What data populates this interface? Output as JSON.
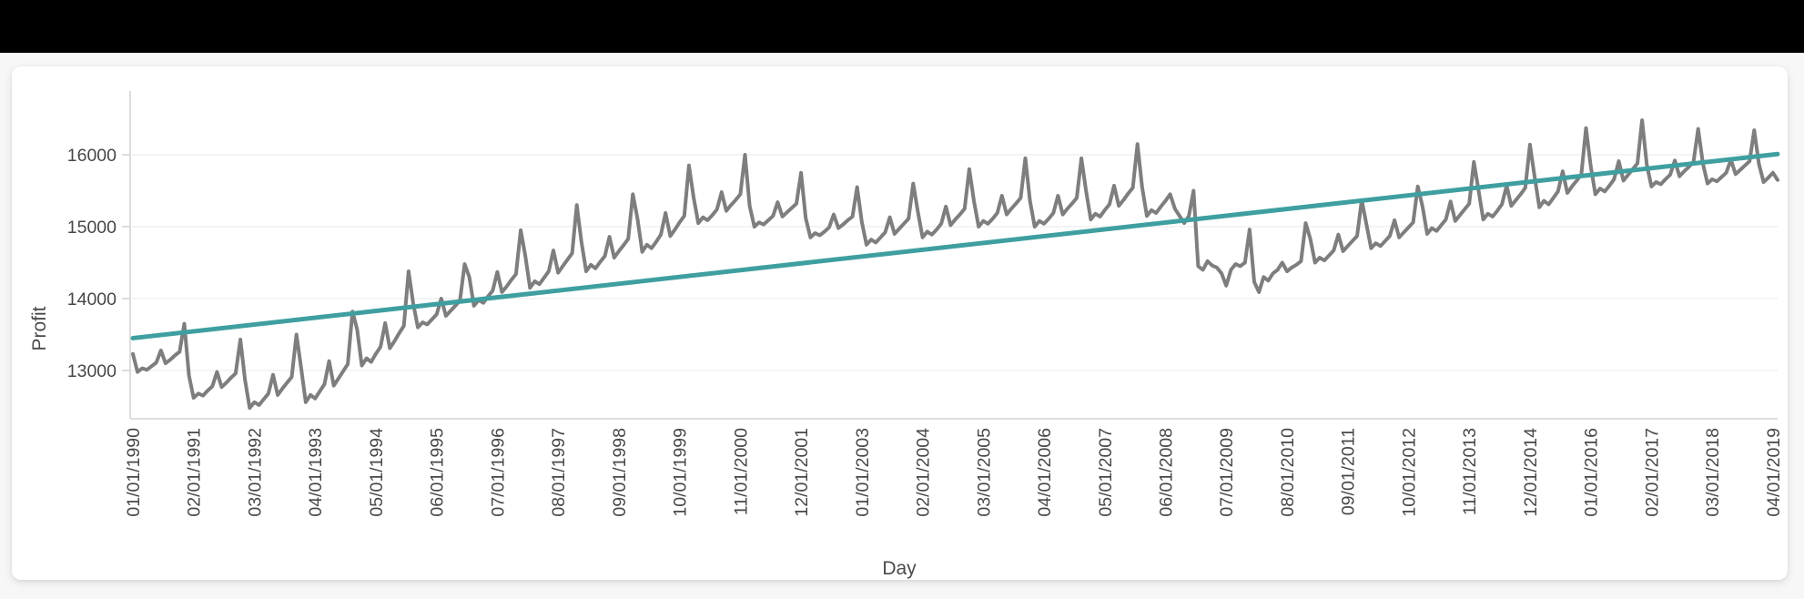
{
  "page": {
    "top_bar_color": "#000000",
    "background_color": "#f7f7f8",
    "card_color": "#ffffff"
  },
  "chart_data": {
    "type": "line",
    "title": "",
    "xlabel": "Day",
    "ylabel": "Profit",
    "grid": "horizontal",
    "legend": "none",
    "y_ticks": [
      13000,
      14000,
      15000,
      16000
    ],
    "ylim": [
      12330,
      16890
    ],
    "x_tick_every": 13,
    "x_tick_labels": [
      "01/01/1990",
      "02/01/1991",
      "03/01/1992",
      "04/01/1993",
      "05/01/1994",
      "06/01/1995",
      "07/01/1996",
      "08/01/1997",
      "09/01/1998",
      "10/01/1999",
      "11/01/2000",
      "12/01/2001",
      "01/01/2003",
      "02/01/2004",
      "03/01/2005",
      "04/01/2006",
      "05/01/2007",
      "06/01/2008",
      "07/01/2009",
      "08/01/2010",
      "09/01/2011",
      "10/01/2012",
      "11/01/2013",
      "12/01/2014",
      "01/01/2016",
      "02/01/2017",
      "03/01/2018",
      "04/01/2019"
    ],
    "series": [
      {
        "name": "Profit",
        "color": "#7e7e7e",
        "stroke_width": 4,
        "values": [
          13230,
          12980,
          13030,
          13010,
          13060,
          13110,
          13280,
          13100,
          13150,
          13210,
          13260,
          13650,
          12930,
          12620,
          12680,
          12650,
          12720,
          12780,
          12980,
          12770,
          12830,
          12900,
          12960,
          13430,
          12870,
          12480,
          12560,
          12520,
          12600,
          12680,
          12940,
          12660,
          12750,
          12830,
          12910,
          13500,
          13040,
          12560,
          12660,
          12610,
          12710,
          12810,
          13130,
          12790,
          12890,
          12990,
          13090,
          13820,
          13570,
          13070,
          13170,
          13120,
          13230,
          13330,
          13660,
          13310,
          13410,
          13520,
          13620,
          14380,
          13930,
          13600,
          13670,
          13640,
          13710,
          13780,
          14000,
          13760,
          13830,
          13900,
          13970,
          14480,
          14300,
          13900,
          13980,
          13940,
          14030,
          14110,
          14370,
          14090,
          14170,
          14260,
          14340,
          14950,
          14590,
          14150,
          14240,
          14200,
          14290,
          14380,
          14670,
          14360,
          14450,
          14540,
          14630,
          15300,
          14790,
          14380,
          14470,
          14420,
          14510,
          14590,
          14860,
          14570,
          14660,
          14740,
          14830,
          15450,
          15110,
          14650,
          14750,
          14700,
          14790,
          14890,
          15190,
          14870,
          14960,
          15060,
          15150,
          15850,
          15410,
          15050,
          15130,
          15090,
          15160,
          15240,
          15480,
          15220,
          15300,
          15370,
          15450,
          16000,
          15290,
          15000,
          15060,
          15030,
          15090,
          15150,
          15340,
          15140,
          15200,
          15260,
          15320,
          15750,
          15120,
          14850,
          14910,
          14880,
          14930,
          14990,
          15170,
          14980,
          15030,
          15090,
          15140,
          15550,
          15070,
          14750,
          14820,
          14780,
          14850,
          14920,
          15130,
          14900,
          14970,
          15040,
          15110,
          15600,
          15210,
          14850,
          14930,
          14890,
          14960,
          15040,
          15280,
          15020,
          15100,
          15170,
          15250,
          15800,
          15360,
          15000,
          15080,
          15040,
          15110,
          15190,
          15430,
          15170,
          15250,
          15320,
          15400,
          15950,
          15360,
          15000,
          15080,
          15040,
          15110,
          15190,
          15430,
          15170,
          15250,
          15320,
          15400,
          15950,
          15500,
          15100,
          15180,
          15140,
          15230,
          15310,
          15570,
          15290,
          15370,
          15460,
          15540,
          16150,
          15550,
          15150,
          15230,
          15190,
          15280,
          15360,
          15450,
          15250,
          15150,
          15050,
          15150,
          15500,
          14450,
          14400,
          14520,
          14460,
          14430,
          14350,
          14180,
          14400,
          14480,
          14450,
          14500,
          14960,
          14230,
          14090,
          14300,
          14250,
          14350,
          14400,
          14500,
          14380,
          14430,
          14470,
          14520,
          15050,
          14830,
          14500,
          14570,
          14530,
          14600,
          14670,
          14890,
          14660,
          14730,
          14800,
          14870,
          15370,
          15030,
          14700,
          14770,
          14730,
          14800,
          14870,
          15090,
          14850,
          14920,
          14990,
          15060,
          15560,
          15280,
          14900,
          14980,
          14940,
          15020,
          15100,
          15350,
          15080,
          15160,
          15240,
          15320,
          15900,
          15500,
          15100,
          15180,
          15140,
          15220,
          15310,
          15570,
          15290,
          15370,
          15450,
          15540,
          16140,
          15690,
          15270,
          15360,
          15310,
          15400,
          15490,
          15770,
          15470,
          15560,
          15640,
          15730,
          16370,
          15840,
          15450,
          15530,
          15490,
          15570,
          15660,
          15910,
          15640,
          15720,
          15800,
          15880,
          16480,
          15860,
          15560,
          15620,
          15590,
          15660,
          15720,
          15920,
          15700,
          15770,
          15830,
          15900,
          16360,
          15880,
          15600,
          15660,
          15630,
          15690,
          15750,
          15930,
          15730,
          15790,
          15850,
          15910,
          16340,
          15870,
          15620,
          15680,
          15750,
          15650
        ]
      },
      {
        "name": "Trend",
        "color": "#3f9fa0",
        "stroke_width": 5,
        "trend": true,
        "start_value": 13450,
        "end_value": 16010
      }
    ],
    "style": {
      "gridline_color": "#f0f0f0",
      "axis_line_color": "#d9d9d9",
      "tick_label_color": "#474747",
      "tick_font_size": 19.5
    }
  }
}
